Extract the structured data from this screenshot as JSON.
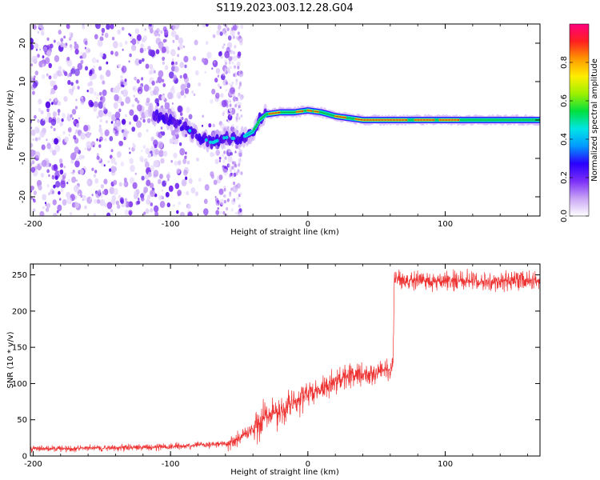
{
  "title": "S119.2023.003.12.28.G04",
  "chart_data": [
    {
      "type": "heatmap",
      "xlabel": "Height of straight line (km)",
      "ylabel": "Frequency (Hz)",
      "xlim": [
        -202,
        169
      ],
      "ylim": [
        -25,
        25
      ],
      "xticks": [
        -200,
        -100,
        0,
        100
      ],
      "yticks": [
        -20,
        -10,
        0,
        10,
        20
      ],
      "colorbar": {
        "label": "Normalized spectral amplitude",
        "range": [
          0,
          1
        ],
        "ticks": [
          0.0,
          0.2,
          0.4,
          0.6,
          0.8
        ],
        "colors": [
          "#ffffff",
          "#c9a5f5",
          "#7b2ff7",
          "#2a00ff",
          "#0099ff",
          "#00e5e5",
          "#00e040",
          "#9cf000",
          "#ffee00",
          "#ff9900",
          "#ff1f1f",
          "#ff0080"
        ]
      },
      "signal_trace": [
        {
          "x": -115,
          "y": 1.5
        },
        {
          "x": -100,
          "y": 0
        },
        {
          "x": -90,
          "y": -2
        },
        {
          "x": -80,
          "y": -4
        },
        {
          "x": -70,
          "y": -6
        },
        {
          "x": -60,
          "y": -4.5
        },
        {
          "x": -50,
          "y": -5
        },
        {
          "x": -40,
          "y": -3
        },
        {
          "x": -35,
          "y": 0
        },
        {
          "x": -30,
          "y": 1.5
        },
        {
          "x": -20,
          "y": 2
        },
        {
          "x": -10,
          "y": 2
        },
        {
          "x": 0,
          "y": 2.5
        },
        {
          "x": 10,
          "y": 2
        },
        {
          "x": 20,
          "y": 1
        },
        {
          "x": 30,
          "y": 0.5
        },
        {
          "x": 40,
          "y": 0
        },
        {
          "x": 60,
          "y": 0
        },
        {
          "x": 100,
          "y": 0
        },
        {
          "x": 169,
          "y": 0
        }
      ],
      "noise_region_x": [
        -202,
        -48
      ]
    },
    {
      "type": "line",
      "xlabel": "Height of straight line (km)",
      "ylabel": "SNR (10 * v/v)",
      "xlim": [
        -202,
        169
      ],
      "ylim": [
        0,
        265
      ],
      "xticks": [
        -200,
        -100,
        0,
        100
      ],
      "yticks": [
        0,
        50,
        100,
        150,
        200,
        250
      ],
      "line_color": "#ee3333",
      "series": [
        {
          "x": [
            -202,
            -180,
            -160,
            -140,
            -120,
            -100,
            -80,
            -60,
            -55,
            -50,
            -45,
            -40,
            -35,
            -30,
            -25,
            -20,
            -15,
            -10,
            -5,
            0,
            5,
            10,
            15,
            20,
            25,
            30,
            35,
            40,
            45,
            50,
            55,
            60,
            62,
            63,
            65,
            70,
            80,
            90,
            100,
            110,
            120,
            130,
            140,
            150,
            160,
            169
          ],
          "y": [
            10,
            10,
            11,
            11,
            12,
            13,
            15,
            17,
            20,
            25,
            30,
            38,
            45,
            55,
            58,
            62,
            68,
            72,
            78,
            85,
            90,
            95,
            100,
            103,
            106,
            110,
            112,
            113,
            115,
            117,
            118,
            120,
            122,
            245,
            244,
            243,
            242,
            240,
            241,
            242,
            243,
            242,
            241,
            242,
            243,
            244
          ]
        }
      ]
    }
  ]
}
